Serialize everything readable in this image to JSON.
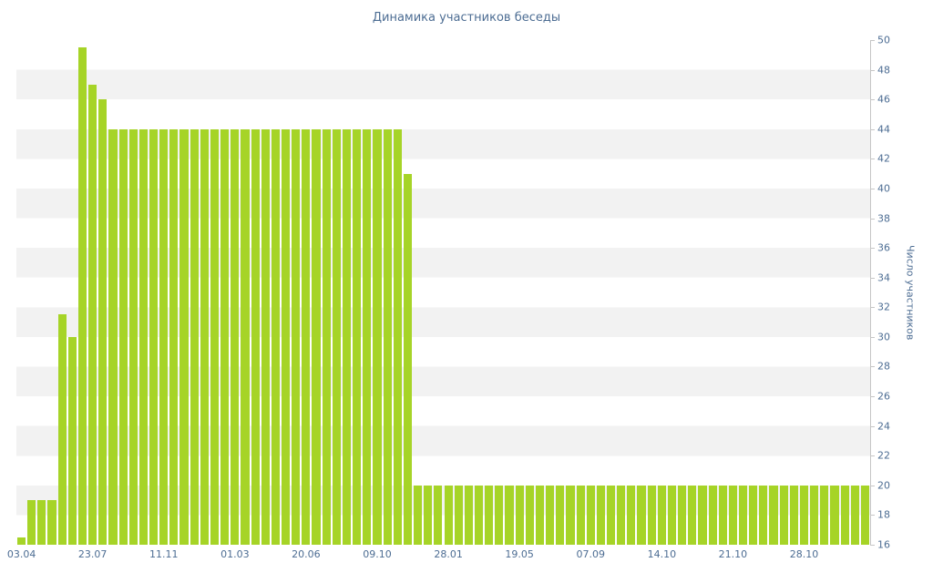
{
  "chart_data": {
    "type": "bar",
    "title": "Динамика участников беседы",
    "xlabel": "",
    "ylabel": "Число участников",
    "ylim": [
      16,
      50
    ],
    "yticks": [
      16,
      18,
      20,
      22,
      24,
      26,
      28,
      30,
      32,
      34,
      36,
      38,
      40,
      42,
      44,
      46,
      48,
      50
    ],
    "grid": "horizontal-stripes",
    "legend": null,
    "values": [
      16.5,
      19,
      19,
      19,
      31.5,
      30,
      49.5,
      47,
      46,
      44,
      44,
      44,
      44,
      44,
      44,
      44,
      44,
      44,
      44,
      44,
      44,
      44,
      44,
      44,
      44,
      44,
      44,
      44,
      44,
      44,
      44,
      44,
      44,
      44,
      44,
      44,
      44,
      44,
      41,
      20,
      20,
      20,
      20,
      20,
      20,
      20,
      20,
      20,
      20,
      20,
      20,
      20,
      20,
      20,
      20,
      20,
      20,
      20,
      20,
      20,
      20,
      20,
      20,
      20,
      20,
      20,
      20,
      20,
      20,
      20,
      20,
      20,
      20,
      20,
      20,
      20,
      20,
      20,
      20,
      20,
      20,
      20,
      20,
      20
    ],
    "xticks": [
      {
        "index": 0,
        "label": "03.04"
      },
      {
        "index": 7,
        "label": "23.07"
      },
      {
        "index": 14,
        "label": "11.11"
      },
      {
        "index": 21,
        "label": "01.03"
      },
      {
        "index": 28,
        "label": "20.06"
      },
      {
        "index": 35,
        "label": "09.10"
      },
      {
        "index": 42,
        "label": "28.01"
      },
      {
        "index": 49,
        "label": "19.05"
      },
      {
        "index": 56,
        "label": "07.09"
      },
      {
        "index": 63,
        "label": "14.10"
      },
      {
        "index": 70,
        "label": "21.10"
      },
      {
        "index": 77,
        "label": "28.10"
      }
    ],
    "colors": {
      "bar": "#a6d427",
      "text": "#4d6d93",
      "stripe": "#f2f2f2",
      "axis": "#c6c6c6"
    }
  }
}
